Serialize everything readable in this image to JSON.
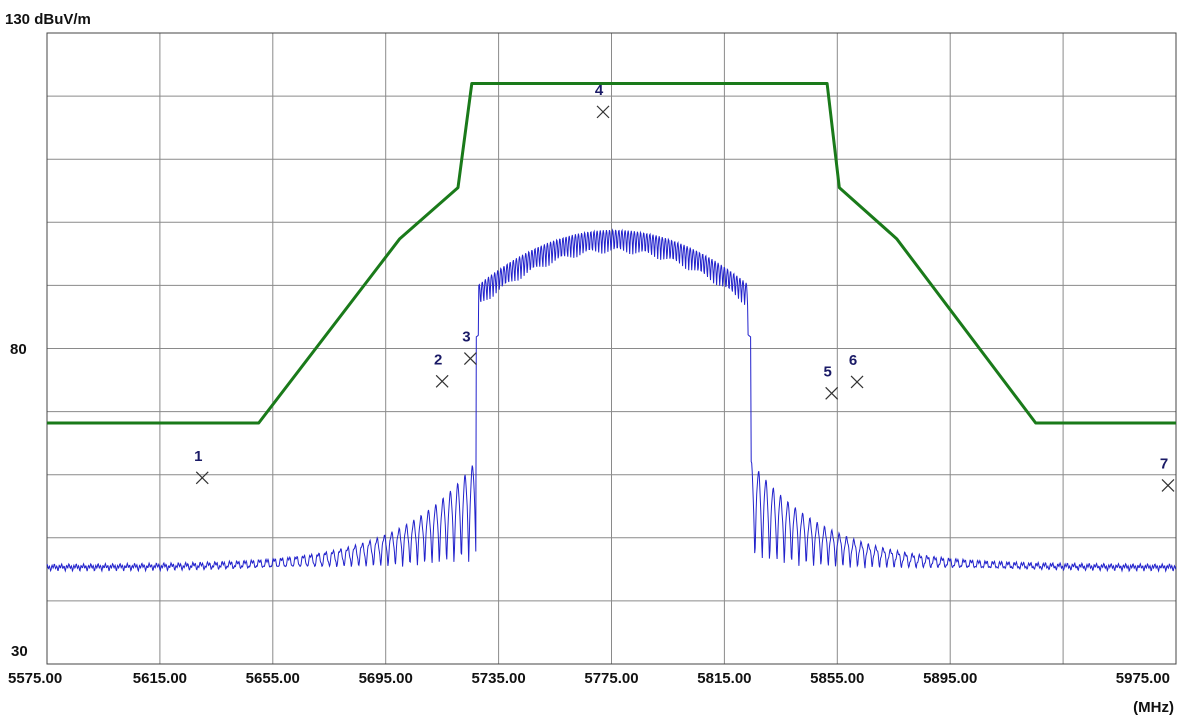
{
  "chart_data": {
    "type": "line",
    "y_top_label": "130 dBuV/m",
    "y_mid_label": "80",
    "y_bottom_label": "30",
    "x_unit_label": "(MHz)",
    "xlim": [
      5575,
      5975
    ],
    "ylim": [
      30,
      130
    ],
    "x_tick_labels": [
      {
        "x": 5575,
        "label": "5575.00"
      },
      {
        "x": 5615,
        "label": "5615.00"
      },
      {
        "x": 5655,
        "label": "5655.00"
      },
      {
        "x": 5695,
        "label": "5695.00"
      },
      {
        "x": 5735,
        "label": "5735.00"
      },
      {
        "x": 5775,
        "label": "5775.00"
      },
      {
        "x": 5815,
        "label": "5815.00"
      },
      {
        "x": 5855,
        "label": "5855.00"
      },
      {
        "x": 5895,
        "label": "5895.00"
      },
      {
        "x": 5975,
        "label": "5975.00"
      }
    ],
    "grid": true,
    "limit_line": {
      "color": "#1a7a1a",
      "points": [
        {
          "x": 5575,
          "y": 68.2
        },
        {
          "x": 5650,
          "y": 68.2
        },
        {
          "x": 5700,
          "y": 97.4
        },
        {
          "x": 5720.6,
          "y": 105.5
        },
        {
          "x": 5725.5,
          "y": 122.0
        },
        {
          "x": 5851.4,
          "y": 122.0
        },
        {
          "x": 5855.7,
          "y": 105.5
        },
        {
          "x": 5876.0,
          "y": 97.4
        },
        {
          "x": 5925.3,
          "y": 68.2
        },
        {
          "x": 5975,
          "y": 68.2
        }
      ]
    },
    "spectrum": {
      "color": "#2222cc",
      "noise_floor": 45.5,
      "band_start": 5727.0,
      "band_end": 5824.4,
      "band_peak": 98.8,
      "edge_level": 62.0
    },
    "markers": [
      {
        "label": "1",
        "x": 5630.0,
        "y": 59.5
      },
      {
        "label": "2",
        "x": 5715.0,
        "y": 74.8
      },
      {
        "label": "3",
        "x": 5725.0,
        "y": 78.4
      },
      {
        "label": "4",
        "x": 5772.0,
        "y": 117.5
      },
      {
        "label": "5",
        "x": 5853.0,
        "y": 72.9
      },
      {
        "label": "6",
        "x": 5862.0,
        "y": 74.7
      },
      {
        "label": "7",
        "x": 5976.0,
        "y": 58.3
      }
    ],
    "colors": {
      "grid": "#8a8a8a",
      "limit": "#1a7a1a",
      "spectrum": "#2222cc",
      "marker": "#333333",
      "marker_label": "#1a1a66"
    }
  }
}
